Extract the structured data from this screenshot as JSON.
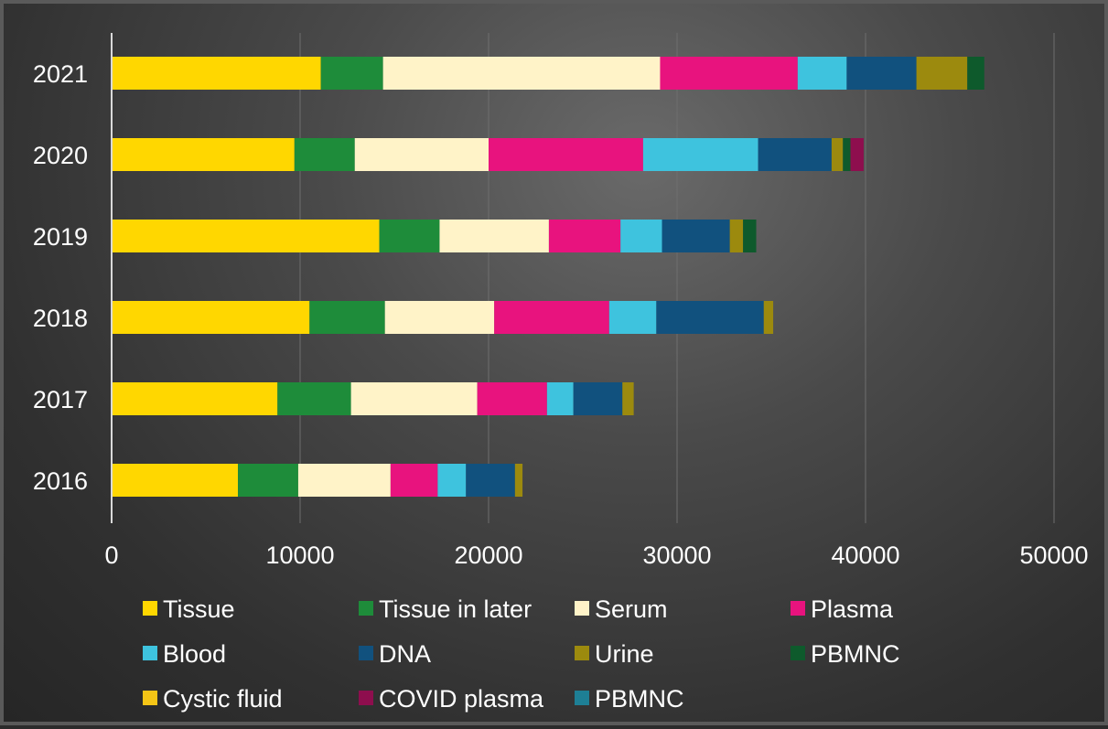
{
  "chart_data": {
    "type": "bar",
    "orientation": "horizontal",
    "stacked": true,
    "categories": [
      "2021",
      "2020",
      "2019",
      "2018",
      "2017",
      "2016"
    ],
    "series": [
      {
        "name": "Tissue",
        "color": "#FFD700",
        "values": [
          11100,
          9700,
          14200,
          10500,
          8800,
          6700
        ]
      },
      {
        "name": "Tissue in later",
        "color": "#1E8C3A",
        "values": [
          3300,
          3200,
          3200,
          4000,
          3900,
          3200
        ]
      },
      {
        "name": "Serum",
        "color": "#FFF3C8",
        "values": [
          14700,
          7100,
          5800,
          5800,
          6700,
          4900
        ]
      },
      {
        "name": "Plasma",
        "color": "#E8137E",
        "values": [
          7300,
          8200,
          3800,
          6100,
          3700,
          2500
        ]
      },
      {
        "name": "Blood",
        "color": "#3EC3DE",
        "values": [
          2600,
          6100,
          2200,
          2500,
          1400,
          1500
        ]
      },
      {
        "name": "DNA",
        "color": "#11517E",
        "values": [
          3700,
          3900,
          3600,
          5700,
          2600,
          2600
        ]
      },
      {
        "name": "Urine",
        "color": "#9C8A0E",
        "values": [
          2700,
          600,
          700,
          500,
          600,
          400
        ]
      },
      {
        "name": "PBMNC",
        "color": "#0E5A2C",
        "values": [
          900,
          400,
          700,
          0,
          0,
          0
        ]
      },
      {
        "name": "Cystic fluid",
        "color": "#F5C516",
        "values": [
          0,
          0,
          0,
          0,
          0,
          0
        ]
      },
      {
        "name": "COVID plasma",
        "color": "#8E0E4E",
        "values": [
          0,
          700,
          0,
          0,
          0,
          0
        ]
      },
      {
        "name": "PBMNC",
        "color": "#1E7F95",
        "values": [
          0,
          0,
          0,
          0,
          0,
          0
        ]
      }
    ],
    "xlim": [
      0,
      50000
    ],
    "xticks": [
      "0",
      "10000",
      "20000",
      "30000",
      "40000",
      "50000"
    ],
    "grid": "vertical",
    "legend": "bottom"
  }
}
